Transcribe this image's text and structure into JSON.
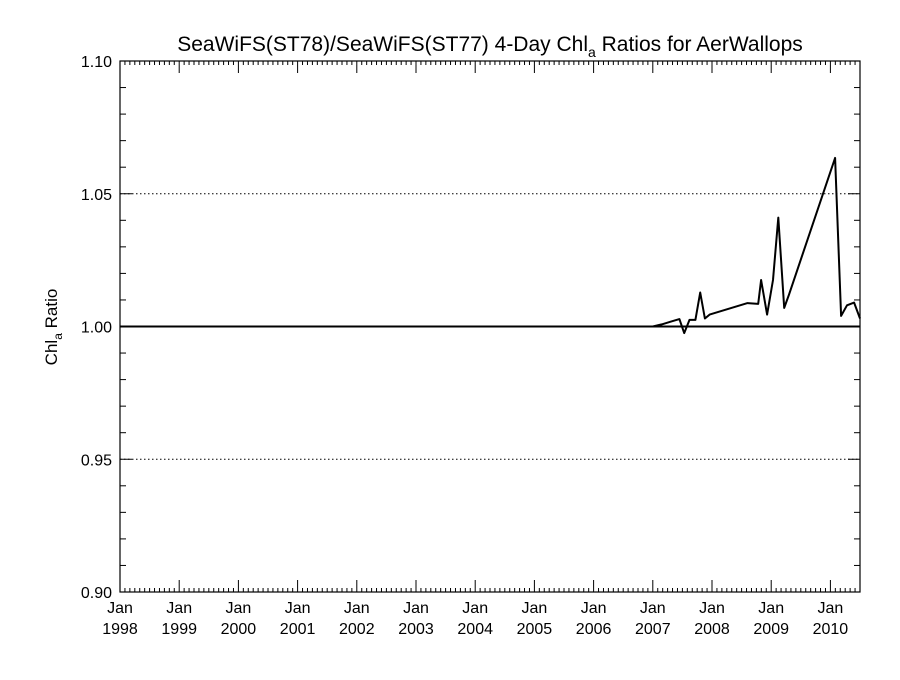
{
  "chart_data": {
    "type": "line",
    "title_main": "SeaWiFS(ST78)/SeaWiFS(ST77) 4-Day Chl",
    "title_sub": "a",
    "title_tail": " Ratios for AerWallops",
    "ylabel_main": "Chl",
    "ylabel_sub": "a",
    "ylabel_tail": " Ratio",
    "xlim": [
      1998.0,
      2010.5
    ],
    "ylim": [
      0.9,
      1.1
    ],
    "x_ticks": [
      {
        "month": "Jan",
        "year": "1998",
        "x": 1998
      },
      {
        "month": "Jan",
        "year": "1999",
        "x": 1999
      },
      {
        "month": "Jan",
        "year": "2000",
        "x": 2000
      },
      {
        "month": "Jan",
        "year": "2001",
        "x": 2001
      },
      {
        "month": "Jan",
        "year": "2002",
        "x": 2002
      },
      {
        "month": "Jan",
        "year": "2003",
        "x": 2003
      },
      {
        "month": "Jan",
        "year": "2004",
        "x": 2004
      },
      {
        "month": "Jan",
        "year": "2005",
        "x": 2005
      },
      {
        "month": "Jan",
        "year": "2006",
        "x": 2006
      },
      {
        "month": "Jan",
        "year": "2007",
        "x": 2007
      },
      {
        "month": "Jan",
        "year": "2008",
        "x": 2008
      },
      {
        "month": "Jan",
        "year": "2009",
        "x": 2009
      },
      {
        "month": "Jan",
        "year": "2010",
        "x": 2010
      }
    ],
    "y_ticks": [
      {
        "label": "0.90",
        "value": 0.9
      },
      {
        "label": "0.95",
        "value": 0.95
      },
      {
        "label": "1.00",
        "value": 1.0
      },
      {
        "label": "1.05",
        "value": 1.05
      },
      {
        "label": "1.10",
        "value": 1.1
      }
    ],
    "dotted_gridlines_y": [
      0.95,
      1.05
    ],
    "reference_line_y": 1.0,
    "series": [
      {
        "x": [
          1998.0,
          2007.0,
          2007.15,
          2007.3,
          2007.45,
          2007.53,
          2007.62,
          2007.72,
          2007.8,
          2007.88,
          2007.96,
          2008.6,
          2008.78,
          2008.83,
          2008.93,
          2009.03,
          2009.12,
          2009.22,
          2009.3,
          2010.08,
          2010.18,
          2010.28,
          2010.4,
          2010.5
        ],
        "y": [
          1.0,
          1.0,
          1.0008,
          1.0018,
          1.0028,
          0.9975,
          1.0025,
          1.0025,
          1.0128,
          1.003,
          1.0045,
          1.0088,
          1.0085,
          1.0175,
          1.0045,
          1.0175,
          1.041,
          1.007,
          1.012,
          1.0635,
          1.004,
          1.008,
          1.009,
          1.003
        ]
      }
    ]
  }
}
